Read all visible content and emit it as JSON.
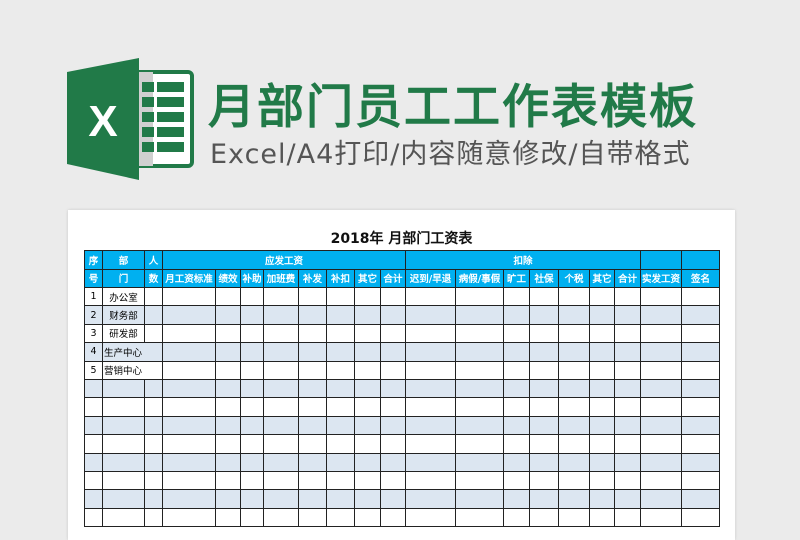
{
  "banner": {
    "title": "月部门员工工作表模板",
    "subtitle": "Excel/A4打印/内容随意修改/自带格式",
    "logo_letter": "X",
    "brand_color": "#217a48"
  },
  "sheet": {
    "title": "2018年 月部门工资表",
    "header_color": "#00b0f0",
    "alt_row_color": "#dce6f1",
    "header_row1": [
      "序",
      "部",
      "人",
      "应发工资",
      "扣除",
      "",
      ""
    ],
    "header_row2": [
      "号",
      "门",
      "数",
      "月工资标准",
      "绩效",
      "补助",
      "加班费",
      "补发",
      "补扣",
      "其它",
      "合计",
      "迟到/早退",
      "病假/事假",
      "旷工",
      "社保",
      "个税",
      "其它",
      "合计",
      "实发工资",
      "签名"
    ],
    "rows": [
      {
        "no": "1",
        "dept": "办公室"
      },
      {
        "no": "2",
        "dept": "财务部"
      },
      {
        "no": "3",
        "dept": "研发部"
      },
      {
        "no": "4",
        "dept": "生产中心"
      },
      {
        "no": "5",
        "dept": "营销中心"
      },
      {
        "no": "",
        "dept": ""
      },
      {
        "no": "",
        "dept": ""
      },
      {
        "no": "",
        "dept": ""
      },
      {
        "no": "",
        "dept": ""
      },
      {
        "no": "",
        "dept": ""
      },
      {
        "no": "",
        "dept": ""
      },
      {
        "no": "",
        "dept": ""
      },
      {
        "no": "",
        "dept": ""
      }
    ]
  }
}
